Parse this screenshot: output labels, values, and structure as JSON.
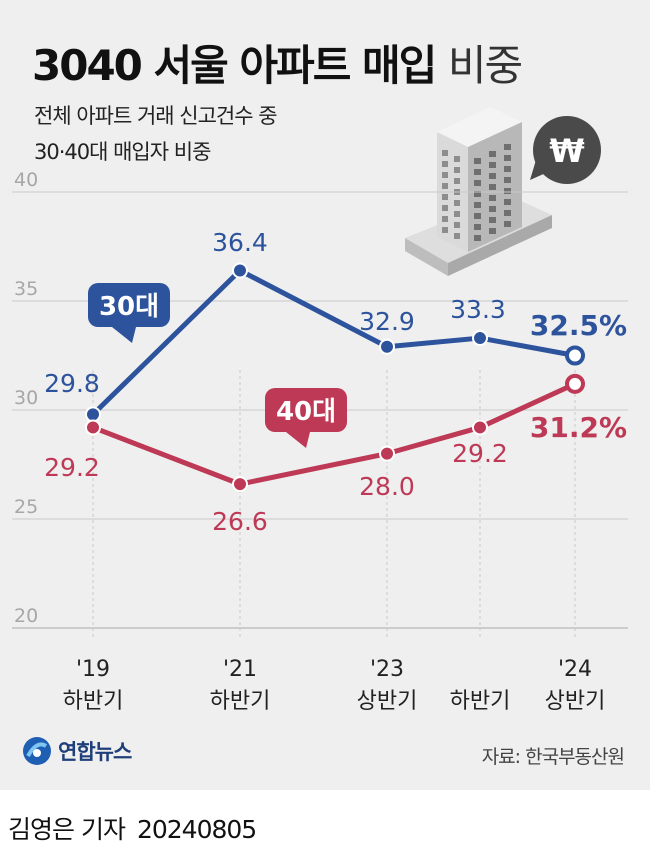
{
  "title": {
    "main": "3040 서울 아파트 매입",
    "light": "비중"
  },
  "subtitle": {
    "line1": "전체 아파트 거래 신고건수 중",
    "line2": "30·40대 매입자 비중"
  },
  "source": "자료: 한국부동산원",
  "logo": {
    "text": "연합뉴스"
  },
  "byline": {
    "author": "김영은 기자",
    "date": "20240805"
  },
  "colors": {
    "blue": "#2d539c",
    "red": "#bd3955",
    "background": "#efefef",
    "grid": "#c9c9c9",
    "axis": "#a9a9a9"
  },
  "icons": [
    "apartment-building-icon",
    "won-speech-bubble-icon"
  ],
  "chart_data": {
    "type": "line",
    "title": "3040 서울 아파트 매입 비중",
    "categories": [
      "'19 하반기",
      "'21 하반기",
      "'23 상반기",
      "'23 하반기",
      "'24 상반기"
    ],
    "category_lines": [
      [
        "'19",
        "하반기"
      ],
      [
        "'21",
        "하반기"
      ],
      [
        "'23",
        "상반기"
      ],
      [
        "",
        "하반기"
      ],
      [
        "'24",
        "상반기"
      ]
    ],
    "series": [
      {
        "name": "30대",
        "values": [
          29.8,
          36.4,
          32.9,
          33.3,
          32.5
        ],
        "labels": [
          "29.8",
          "36.4",
          "32.9",
          "33.3",
          "32.5%"
        ],
        "color": "#2d539c"
      },
      {
        "name": "40대",
        "values": [
          29.2,
          26.6,
          28.0,
          29.2,
          31.2
        ],
        "labels": [
          "29.2",
          "26.6",
          "28.0",
          "29.2",
          "31.2%"
        ],
        "color": "#bd3955"
      }
    ],
    "yticks": [
      20,
      25,
      30,
      35,
      40
    ],
    "ylim": [
      20,
      40
    ],
    "grid": true,
    "legend": "callout bubbles on lines"
  }
}
